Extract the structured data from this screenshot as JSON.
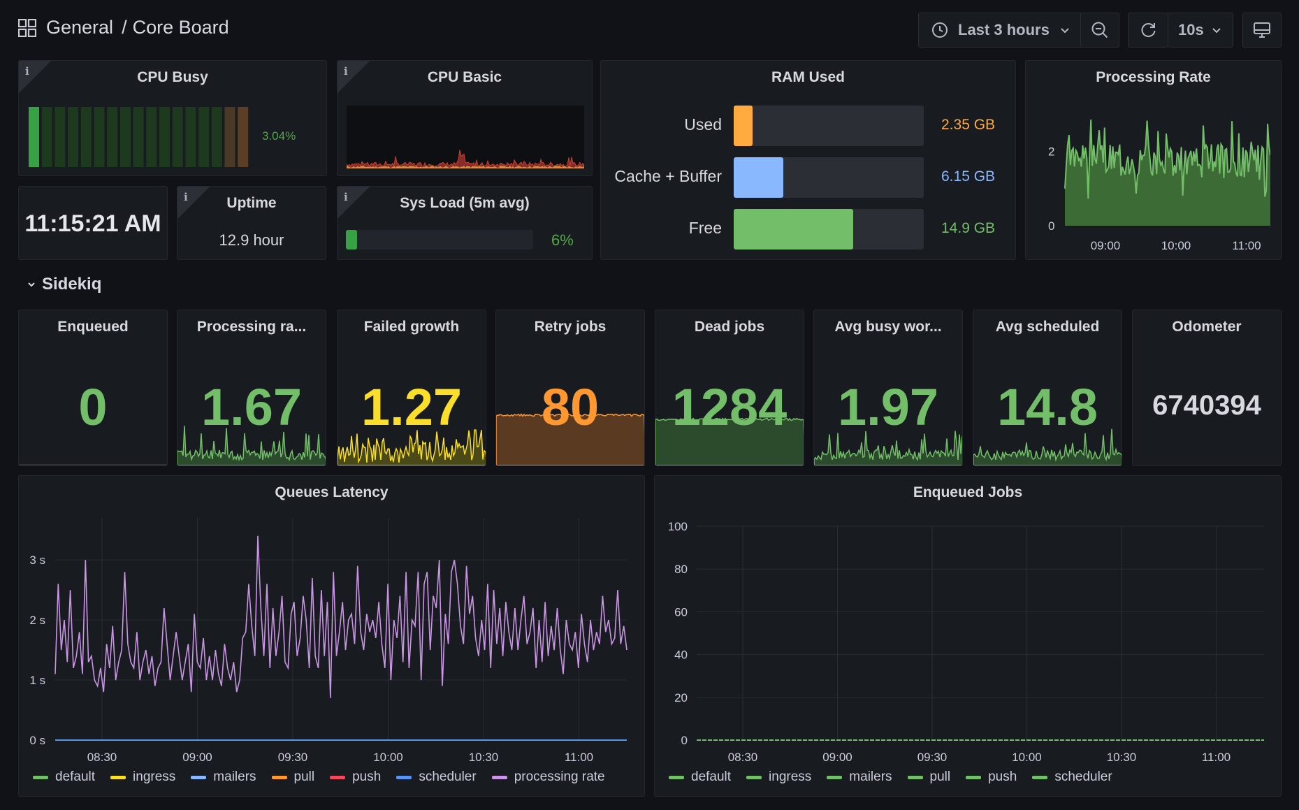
{
  "header": {
    "folder": "General",
    "separator": "/",
    "title": "Core Board",
    "time_range": "Last 3 hours",
    "refresh_interval": "10s"
  },
  "panels": {
    "cpu_busy": {
      "title": "CPU Busy",
      "value_text": "3.04%",
      "value": 3.04
    },
    "cpu_basic": {
      "title": "CPU Basic"
    },
    "ram_used": {
      "title": "RAM Used",
      "rows": [
        {
          "label": "Used",
          "value_text": "2.35 GB",
          "fraction": 0.1,
          "color": "#ffab40"
        },
        {
          "label": "Cache + Buffer",
          "value_text": "6.15 GB",
          "fraction": 0.26,
          "color": "#8ab8ff"
        },
        {
          "label": "Free",
          "value_text": "14.9 GB",
          "fraction": 0.63,
          "color": "#73bf69"
        }
      ]
    },
    "processing_rate_top": {
      "title": "Processing Rate",
      "y_ticks": [
        "2",
        "0"
      ],
      "x_ticks": [
        "09:00",
        "10:00",
        "11:00"
      ]
    },
    "clock": {
      "value": "11:15:21 AM"
    },
    "uptime": {
      "title": "Uptime",
      "value": "12.9 hour"
    },
    "sys_load": {
      "title": "Sys Load (5m avg)",
      "value_text": "6%",
      "value": 6
    }
  },
  "section": {
    "title": "Sidekiq"
  },
  "stats": [
    {
      "title": "Enqueued",
      "value": "0",
      "color": "#73bf69"
    },
    {
      "title": "Processing ra...",
      "value": "1.67",
      "color": "#73bf69"
    },
    {
      "title": "Failed growth",
      "value": "1.27",
      "color": "#fade2a"
    },
    {
      "title": "Retry jobs",
      "value": "80",
      "color": "#ff9830"
    },
    {
      "title": "Dead jobs",
      "value": "1284",
      "color": "#73bf69"
    },
    {
      "title": "Avg busy wor...",
      "value": "1.97",
      "color": "#73bf69"
    },
    {
      "title": "Avg scheduled",
      "value": "14.8",
      "color": "#73bf69"
    },
    {
      "title": "Odometer",
      "value": "6740394",
      "color": "#d8d9e0"
    }
  ],
  "chart_data": [
    {
      "type": "line",
      "title": "Queues Latency",
      "y_ticks": [
        "0 s",
        "1 s",
        "2 s",
        "3 s"
      ],
      "ylim": [
        0,
        3.7
      ],
      "x_ticks": [
        "08:30",
        "09:00",
        "09:30",
        "10:00",
        "10:30",
        "11:00"
      ],
      "series": [
        {
          "name": "default",
          "color": "#73bf69",
          "values_note": "flat at 0"
        },
        {
          "name": "ingress",
          "color": "#fade2a",
          "values_note": "flat at 0"
        },
        {
          "name": "mailers",
          "color": "#8ab8ff",
          "values_note": "flat at 0"
        },
        {
          "name": "pull",
          "color": "#ff9830",
          "values_note": "flat at 0"
        },
        {
          "name": "push",
          "color": "#f2495c",
          "values_note": "flat at 0"
        },
        {
          "name": "scheduler",
          "color": "#5794f2",
          "values_note": "flat at 0"
        },
        {
          "name": "processing rate",
          "color": "#ca95e5",
          "values": [
            1.1,
            2.6,
            1.5,
            2.0,
            1.3,
            2.5,
            1.2,
            1.4,
            1.8,
            1.1,
            3.0,
            1.3,
            1.4,
            1.0,
            0.9,
            1.2,
            0.8,
            1.6,
            1.2,
            1.9,
            1.0,
            1.3,
            1.5,
            2.8,
            1.6,
            1.3,
            1.2,
            1.8,
            1.0,
            1.3,
            1.5,
            1.1,
            1.4,
            0.9,
            1.2,
            1.3,
            2.2,
            1.6,
            1.0,
            1.4,
            1.8,
            1.4,
            1.0,
            1.3,
            1.6,
            0.8,
            2.1,
            1.3,
            1.2,
            1.7,
            1.0,
            1.4,
            1.0,
            1.5,
            1.1,
            0.9,
            1.6,
            1.2,
            1.0,
            1.3,
            0.8,
            1.0,
            1.7,
            1.8,
            2.6,
            1.9,
            1.4,
            3.4,
            2.2,
            1.4,
            2.6,
            1.2,
            2.2,
            1.4,
            1.8,
            2.4,
            1.3,
            1.2,
            2.1,
            2.3,
            1.4,
            1.7,
            2.4,
            2.0,
            1.2,
            2.7,
            1.4,
            1.2,
            2.5,
            1.4,
            2.3,
            0.7,
            2.8,
            1.4,
            1.8,
            2.3,
            1.5,
            2.0,
            2.1,
            1.6,
            2.9,
            1.8,
            1.5,
            2.1,
            1.8,
            2.0,
            1.7,
            2.3,
            1.6,
            1.2,
            2.6,
            1.0,
            2.0,
            1.7,
            2.4,
            1.3,
            2.8,
            1.2,
            2.0,
            1.9,
            2.8,
            1.0,
            2.6,
            2.8,
            1.5,
            2.4,
            2.2,
            3.0,
            0.9,
            2.1,
            1.6,
            2.8,
            3.0,
            2.6,
            1.9,
            1.6,
            2.9,
            2.1,
            2.4,
            1.7,
            1.4,
            2.0,
            1.5,
            2.6,
            1.2,
            2.5,
            1.6,
            2.2,
            1.4,
            2.3,
            1.8,
            1.5,
            2.2,
            1.5,
            2.0,
            2.4,
            1.6,
            1.8,
            2.2,
            1.2,
            2.0,
            1.3,
            2.3,
            1.4,
            1.9,
            1.5,
            2.2,
            1.5,
            1.1,
            2.0,
            1.6,
            1.5,
            1.8,
            1.2,
            2.1,
            1.6,
            1.3,
            2.0,
            1.5,
            1.8,
            1.6,
            2.4,
            1.8,
            2.0,
            1.6,
            1.7,
            2.5,
            1.6,
            1.9,
            1.5
          ]
        }
      ]
    },
    {
      "type": "line",
      "title": "Enqueued Jobs",
      "y_ticks": [
        "0",
        "20",
        "40",
        "60",
        "80",
        "100"
      ],
      "ylim": [
        0,
        100
      ],
      "x_ticks": [
        "08:30",
        "09:00",
        "09:30",
        "10:00",
        "10:30",
        "11:00"
      ],
      "series": [
        {
          "name": "default",
          "color": "#73bf69",
          "values": [
            0
          ]
        },
        {
          "name": "ingress",
          "color": "#73bf69",
          "values": [
            0
          ]
        },
        {
          "name": "mailers",
          "color": "#73bf69",
          "values": [
            0
          ]
        },
        {
          "name": "pull",
          "color": "#73bf69",
          "values": [
            0
          ]
        },
        {
          "name": "push",
          "color": "#73bf69",
          "values": [
            0
          ]
        },
        {
          "name": "scheduler",
          "color": "#73bf69",
          "values": [
            0
          ]
        }
      ]
    }
  ]
}
